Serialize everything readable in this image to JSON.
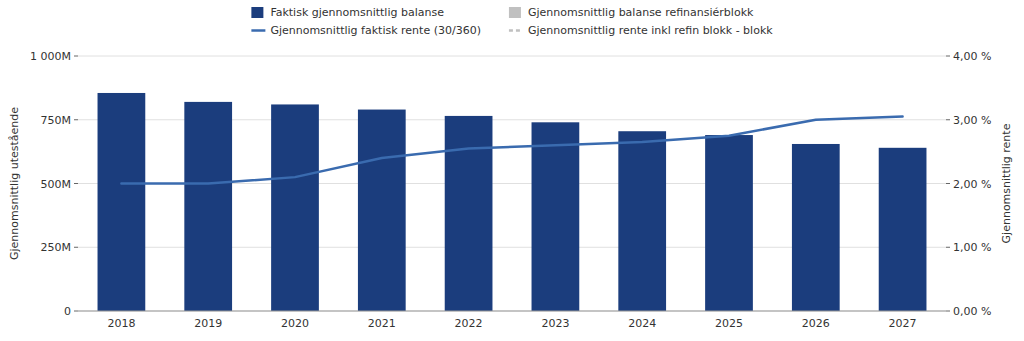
{
  "chart_data": {
    "type": "bar",
    "categories": [
      "2018",
      "2019",
      "2020",
      "2021",
      "2022",
      "2023",
      "2024",
      "2025",
      "2026",
      "2027"
    ],
    "series": [
      {
        "name": "Faktisk gjennomsnittlig balanse",
        "type": "bar",
        "color": "#1b3d7d",
        "values": [
          855,
          820,
          810,
          790,
          765,
          740,
          705,
          690,
          655,
          640
        ]
      },
      {
        "name": "Gjennomsnittlig balanse refinansiérblokk",
        "type": "bar",
        "color": "#c0c0c0",
        "values": [
          null,
          null,
          null,
          null,
          null,
          null,
          null,
          null,
          null,
          null
        ]
      },
      {
        "name": "Gjennomsnittlig faktisk rente (30/360)",
        "type": "line",
        "axis": "y2",
        "color": "#3a6baf",
        "line_style": "solid",
        "values": [
          2.0,
          2.0,
          2.1,
          2.4,
          2.55,
          2.6,
          2.65,
          2.75,
          3.0,
          3.05
        ]
      },
      {
        "name": "Gjennomsnittlig rente inkl refin blokk - blokk",
        "type": "line",
        "axis": "y2",
        "color": "#c0c0c0",
        "line_style": "dashed",
        "values": [
          null,
          null,
          null,
          null,
          null,
          null,
          null,
          null,
          null,
          null
        ]
      }
    ],
    "ylabel": "Gjennomsnittlig utestående",
    "y2label": "Gjennomsnittlig rente",
    "ylim": [
      0,
      1000
    ],
    "yticks": [
      0,
      {
        "value": 250,
        "label": "250M"
      },
      {
        "value": 500,
        "label": "500M"
      },
      {
        "value": 750,
        "label": "750M"
      },
      {
        "value": 1000,
        "label": "1 000M"
      }
    ],
    "y2lim": [
      0.0,
      4.0
    ],
    "y2ticks": [
      {
        "value": 0.0,
        "label": "0,00 %"
      },
      {
        "value": 1.0,
        "label": "1,00 %"
      },
      {
        "value": 2.0,
        "label": "2,00 %"
      },
      {
        "value": 3.0,
        "label": "3,00 %"
      },
      {
        "value": 4.0,
        "label": "4,00 %"
      }
    ],
    "grid": true,
    "legend": "top"
  }
}
